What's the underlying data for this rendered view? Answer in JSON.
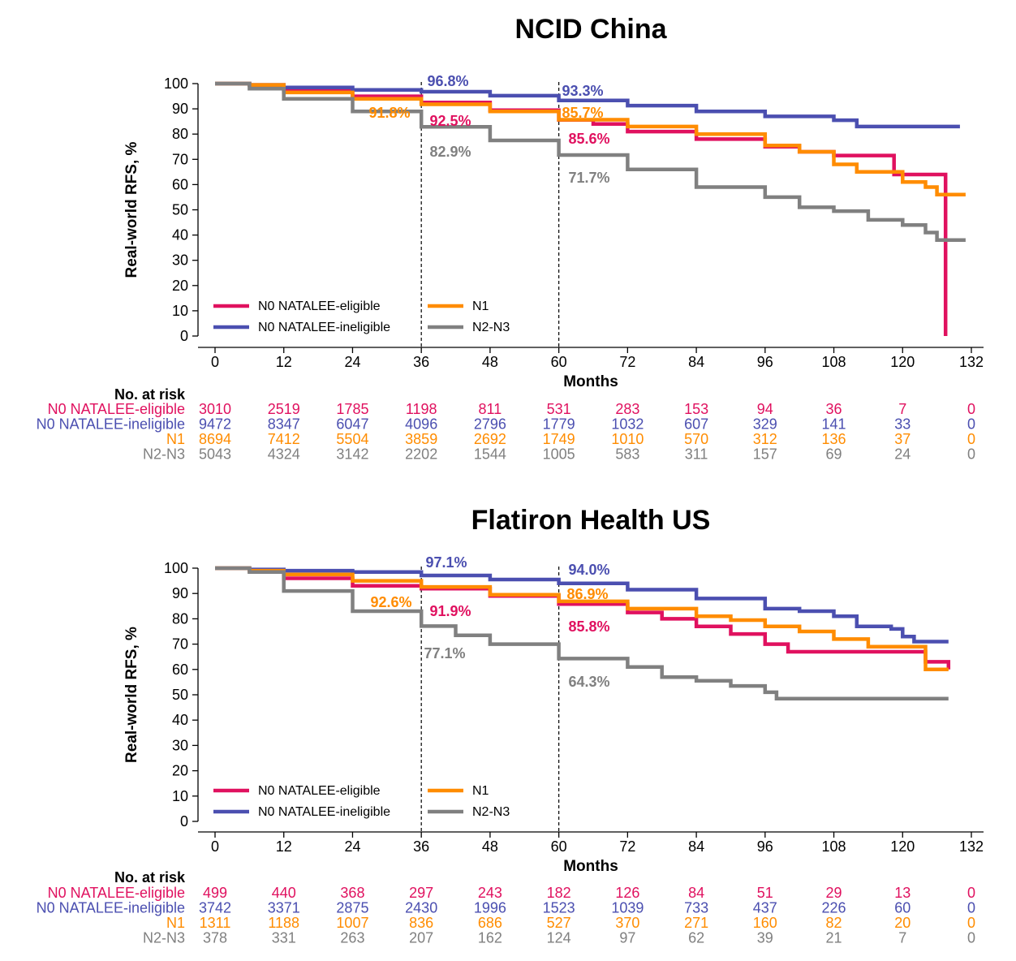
{
  "colors": {
    "N0 NATALEE-eligible": "#E0115F",
    "N0 NATALEE-ineligible": "#4B4FB0",
    "N1": "#FF8C00",
    "N2-N3": "#808080"
  },
  "chart_data": [
    {
      "type": "line",
      "step": true,
      "title": "NCID China",
      "xlabel": "Months",
      "ylabel": "Real-world RFS, %",
      "xlim": [
        0,
        132
      ],
      "ylim": [
        0,
        100
      ],
      "xticks": [
        "0",
        "12",
        "24",
        "36",
        "48",
        "60",
        "72",
        "84",
        "96",
        "108",
        "120",
        "132"
      ],
      "yticks": [
        "0",
        "10",
        "20",
        "30",
        "40",
        "50",
        "60",
        "70",
        "80",
        "90",
        "100"
      ],
      "reference_lines_x": [
        36,
        60
      ],
      "legend": [
        "N0 NATALEE-eligible",
        "N1",
        "N0 NATALEE-ineligible",
        "N2-N3"
      ],
      "series": [
        {
          "name": "N0 NATALEE-eligible",
          "x": [
            0,
            6,
            12,
            24,
            36,
            48,
            60,
            66,
            72,
            84,
            96,
            102,
            108,
            118,
            118.5,
            127,
            127.5
          ],
          "y": [
            100,
            99.5,
            97.5,
            95,
            92.5,
            89.5,
            85.6,
            84,
            81,
            78,
            75,
            73,
            71.5,
            71.5,
            64,
            64,
            0
          ]
        },
        {
          "name": "N0 NATALEE-ineligible",
          "x": [
            0,
            6,
            12,
            24,
            36,
            48,
            60,
            72,
            84,
            96,
            108,
            112,
            120,
            130
          ],
          "y": [
            100,
            99.5,
            98.5,
            97.5,
            96.8,
            95.2,
            93.3,
            91.3,
            89,
            87,
            85.5,
            83,
            83,
            83
          ]
        },
        {
          "name": "N1",
          "x": [
            0,
            6,
            12,
            24,
            36,
            48,
            60,
            72,
            84,
            96,
            102,
            108,
            112,
            120,
            124,
            126,
            131
          ],
          "y": [
            100,
            99.5,
            96.5,
            94,
            91.8,
            89,
            85.7,
            83,
            80,
            75.5,
            73,
            68,
            65,
            61,
            59,
            56,
            56
          ]
        },
        {
          "name": "N2-N3",
          "x": [
            0,
            6,
            12,
            24,
            36,
            48,
            60,
            72,
            84,
            96,
            102,
            108,
            114,
            120,
            124,
            126,
            131
          ],
          "y": [
            100,
            98,
            94,
            89,
            82.9,
            77.5,
            71.7,
            66,
            59,
            55,
            51,
            49.5,
            46,
            44,
            41,
            38,
            38
          ]
        }
      ],
      "annotations": [
        {
          "text": "96.8%",
          "series": "N0 NATALEE-ineligible"
        },
        {
          "text": "93.3%",
          "series": "N0 NATALEE-ineligible"
        },
        {
          "text": "91.8%",
          "series": "N1"
        },
        {
          "text": "92.5%",
          "series": "N0 NATALEE-eligible"
        },
        {
          "text": "85.7%",
          "series": "N1"
        },
        {
          "text": "85.6%",
          "series": "N0 NATALEE-eligible"
        },
        {
          "text": "82.9%",
          "series": "N2-N3"
        },
        {
          "text": "71.7%",
          "series": "N2-N3"
        }
      ],
      "risk_table": {
        "title": "No. at risk",
        "times": [
          0,
          12,
          24,
          36,
          48,
          60,
          72,
          84,
          96,
          108,
          120,
          132
        ],
        "rows": [
          {
            "label": "N0 NATALEE-eligible",
            "values": [
              "3010",
              "2519",
              "1785",
              "1198",
              "811",
              "531",
              "283",
              "153",
              "94",
              "36",
              "7",
              "0"
            ]
          },
          {
            "label": "N0 NATALEE-ineligible",
            "values": [
              "9472",
              "8347",
              "6047",
              "4096",
              "2796",
              "1779",
              "1032",
              "607",
              "329",
              "141",
              "33",
              "0"
            ]
          },
          {
            "label": "N1",
            "values": [
              "8694",
              "7412",
              "5504",
              "3859",
              "2692",
              "1749",
              "1010",
              "570",
              "312",
              "136",
              "37",
              "0"
            ]
          },
          {
            "label": "N2-N3",
            "values": [
              "5043",
              "4324",
              "3142",
              "2202",
              "1544",
              "1005",
              "583",
              "311",
              "157",
              "69",
              "24",
              "0"
            ]
          }
        ]
      }
    },
    {
      "type": "line",
      "step": true,
      "title": "Flatiron Health US",
      "xlabel": "Months",
      "ylabel": "Real-world RFS, %",
      "xlim": [
        0,
        132
      ],
      "ylim": [
        0,
        100
      ],
      "xticks": [
        "0",
        "12",
        "24",
        "36",
        "48",
        "60",
        "72",
        "84",
        "96",
        "108",
        "120",
        "132"
      ],
      "yticks": [
        "0",
        "10",
        "20",
        "30",
        "40",
        "50",
        "60",
        "70",
        "80",
        "90",
        "100"
      ],
      "reference_lines_x": [
        36,
        60
      ],
      "legend": [
        "N0 NATALEE-eligible",
        "N1",
        "N0 NATALEE-ineligible",
        "N2-N3"
      ],
      "series": [
        {
          "name": "N0 NATALEE-eligible",
          "x": [
            0,
            6,
            12,
            24,
            36,
            48,
            60,
            72,
            78,
            84,
            90,
            96,
            100,
            108,
            118,
            124,
            128
          ],
          "y": [
            100,
            99,
            96,
            93,
            91.9,
            89,
            85.8,
            82.5,
            80,
            77,
            74,
            70,
            67,
            67,
            67,
            63,
            60
          ]
        },
        {
          "name": "N0 NATALEE-ineligible",
          "x": [
            0,
            6,
            12,
            24,
            36,
            48,
            60,
            72,
            84,
            96,
            102,
            108,
            112,
            118,
            120,
            122,
            128
          ],
          "y": [
            100,
            99.5,
            99,
            98.5,
            97.1,
            95.5,
            94,
            91.5,
            88,
            84,
            83,
            81,
            77,
            76,
            73,
            71,
            71
          ]
        },
        {
          "name": "N1",
          "x": [
            0,
            6,
            12,
            24,
            36,
            48,
            60,
            72,
            84,
            90,
            96,
            102,
            108,
            114,
            120,
            124,
            128
          ],
          "y": [
            100,
            99,
            97.5,
            95,
            92.6,
            89.5,
            86.9,
            84,
            81,
            79.5,
            77,
            75,
            72,
            69,
            69,
            60,
            60
          ]
        },
        {
          "name": "N2-N3",
          "x": [
            0,
            6,
            12,
            24,
            36,
            42,
            48,
            60,
            72,
            78,
            84,
            90,
            96,
            98,
            110,
            128
          ],
          "y": [
            100,
            98.5,
            91,
            83,
            77.1,
            73.5,
            70,
            64.3,
            61,
            57,
            55.5,
            53.5,
            51,
            48.5,
            48.5,
            48.5
          ]
        }
      ],
      "annotations": [
        {
          "text": "97.1%",
          "series": "N0 NATALEE-ineligible"
        },
        {
          "text": "94.0%",
          "series": "N0 NATALEE-ineligible"
        },
        {
          "text": "92.6%",
          "series": "N1"
        },
        {
          "text": "91.9%",
          "series": "N0 NATALEE-eligible"
        },
        {
          "text": "86.9%",
          "series": "N1"
        },
        {
          "text": "85.8%",
          "series": "N0 NATALEE-eligible"
        },
        {
          "text": "77.1%",
          "series": "N2-N3"
        },
        {
          "text": "64.3%",
          "series": "N2-N3"
        }
      ],
      "risk_table": {
        "title": "No. at risk",
        "times": [
          0,
          12,
          24,
          36,
          48,
          60,
          72,
          84,
          96,
          108,
          120,
          132
        ],
        "rows": [
          {
            "label": "N0 NATALEE-eligible",
            "values": [
              "499",
              "440",
              "368",
              "297",
              "243",
              "182",
              "126",
              "84",
              "51",
              "29",
              "13",
              "0"
            ]
          },
          {
            "label": "N0 NATALEE-ineligible",
            "values": [
              "3742",
              "3371",
              "2875",
              "2430",
              "1996",
              "1523",
              "1039",
              "733",
              "437",
              "226",
              "60",
              "0"
            ]
          },
          {
            "label": "N1",
            "values": [
              "1311",
              "1188",
              "1007",
              "836",
              "686",
              "527",
              "370",
              "271",
              "160",
              "82",
              "20",
              "0"
            ]
          },
          {
            "label": "N2-N3",
            "values": [
              "378",
              "331",
              "263",
              "207",
              "162",
              "124",
              "97",
              "62",
              "39",
              "21",
              "7",
              "0"
            ]
          }
        ]
      }
    }
  ]
}
